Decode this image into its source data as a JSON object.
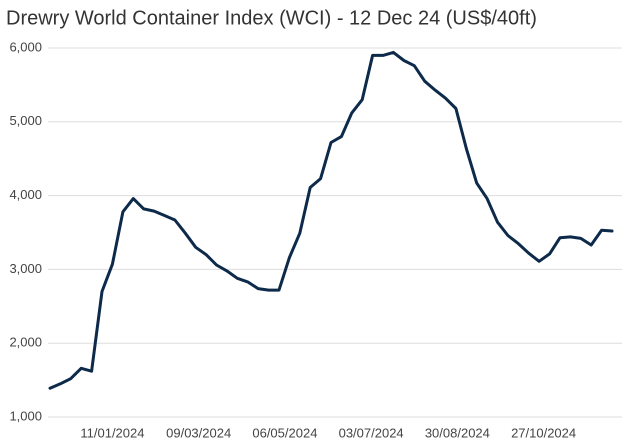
{
  "chart_data": {
    "type": "line",
    "title": "Drewry World Container Index (WCI) - 12 Dec 24 (US$/40ft)",
    "x": [
      "2023-11-30",
      "2023-12-07",
      "2023-12-14",
      "2023-12-21",
      "2023-12-28",
      "2024-01-04",
      "2024-01-11",
      "2024-01-18",
      "2024-01-25",
      "2024-02-01",
      "2024-02-08",
      "2024-02-15",
      "2024-02-22",
      "2024-02-29",
      "2024-03-07",
      "2024-03-14",
      "2024-03-21",
      "2024-03-28",
      "2024-04-04",
      "2024-04-11",
      "2024-04-18",
      "2024-04-25",
      "2024-05-02",
      "2024-05-09",
      "2024-05-16",
      "2024-05-23",
      "2024-05-30",
      "2024-06-06",
      "2024-06-13",
      "2024-06-20",
      "2024-06-27",
      "2024-07-04",
      "2024-07-11",
      "2024-07-18",
      "2024-07-25",
      "2024-08-01",
      "2024-08-08",
      "2024-08-15",
      "2024-08-22",
      "2024-08-29",
      "2024-09-05",
      "2024-09-12",
      "2024-09-19",
      "2024-09-26",
      "2024-10-03",
      "2024-10-10",
      "2024-10-17",
      "2024-10-24",
      "2024-10-31",
      "2024-11-07",
      "2024-11-14",
      "2024-11-21",
      "2024-11-28",
      "2024-12-05",
      "2024-12-12"
    ],
    "values": [
      1390,
      1450,
      1520,
      1660,
      1620,
      2700,
      3070,
      3780,
      3960,
      3820,
      3790,
      3730,
      3670,
      3490,
      3300,
      3200,
      3060,
      2980,
      2880,
      2830,
      2740,
      2720,
      2720,
      3160,
      3490,
      4110,
      4230,
      4720,
      4800,
      5120,
      5300,
      5900,
      5900,
      5940,
      5830,
      5760,
      5550,
      5430,
      5320,
      5180,
      4640,
      4170,
      3960,
      3640,
      3460,
      3350,
      3220,
      3110,
      3210,
      3430,
      3440,
      3420,
      3330,
      3530,
      3520
    ],
    "color": "#0d2a4a",
    "xlim": [
      "2023-11-30",
      "2024-12-12"
    ],
    "xticks": [
      {
        "value": "2024-01-11",
        "label": "11/01/2024"
      },
      {
        "value": "2024-03-09",
        "label": "09/03/2024"
      },
      {
        "value": "2024-05-06",
        "label": "06/05/2024"
      },
      {
        "value": "2024-07-03",
        "label": "03/07/2024"
      },
      {
        "value": "2024-08-30",
        "label": "30/08/2024"
      },
      {
        "value": "2024-10-27",
        "label": "27/10/2024"
      }
    ],
    "ylim": [
      1000,
      6000
    ],
    "yticks": [
      {
        "value": 1000,
        "label": "1,000"
      },
      {
        "value": 2000,
        "label": "2,000"
      },
      {
        "value": 3000,
        "label": "3,000"
      },
      {
        "value": 4000,
        "label": "4,000"
      },
      {
        "value": 5000,
        "label": "5,000"
      },
      {
        "value": 6000,
        "label": "6,000"
      }
    ],
    "grid": true
  }
}
